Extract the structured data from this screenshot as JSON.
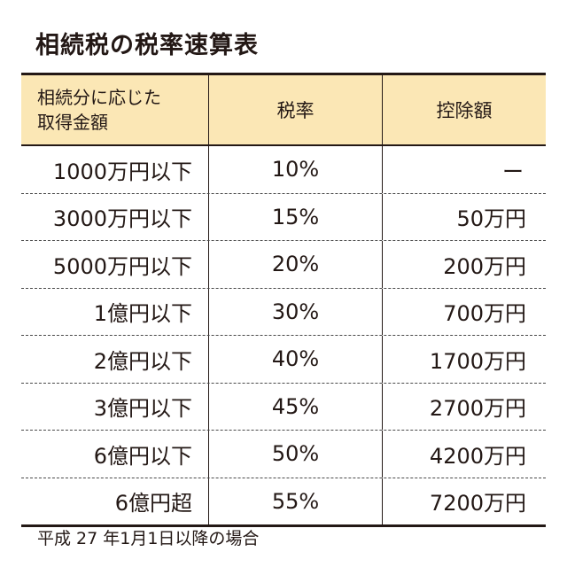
{
  "title": "相続税の税率速算表",
  "table": {
    "headers": [
      "相続分に応じた\n取得金額",
      "税率",
      "控除額"
    ],
    "rows": [
      {
        "amount": "1000万円以下",
        "rate": "10%",
        "deduction": "ー"
      },
      {
        "amount": "3000万円以下",
        "rate": "15%",
        "deduction": "50万円"
      },
      {
        "amount": "5000万円以下",
        "rate": "20%",
        "deduction": "200万円"
      },
      {
        "amount": "1億円以下",
        "rate": "30%",
        "deduction": "700万円"
      },
      {
        "amount": "2億円以下",
        "rate": "40%",
        "deduction": "1700万円"
      },
      {
        "amount": "3億円以下",
        "rate": "45%",
        "deduction": "2700万円"
      },
      {
        "amount": "6億円以下",
        "rate": "50%",
        "deduction": "4200万円"
      },
      {
        "amount": "6億円超",
        "rate": "55%",
        "deduction": "7200万円"
      }
    ]
  },
  "note": "平成 27 年1月1日以降の場合",
  "colors": {
    "header_bg": "#fbe7b5",
    "text": "#231815"
  }
}
